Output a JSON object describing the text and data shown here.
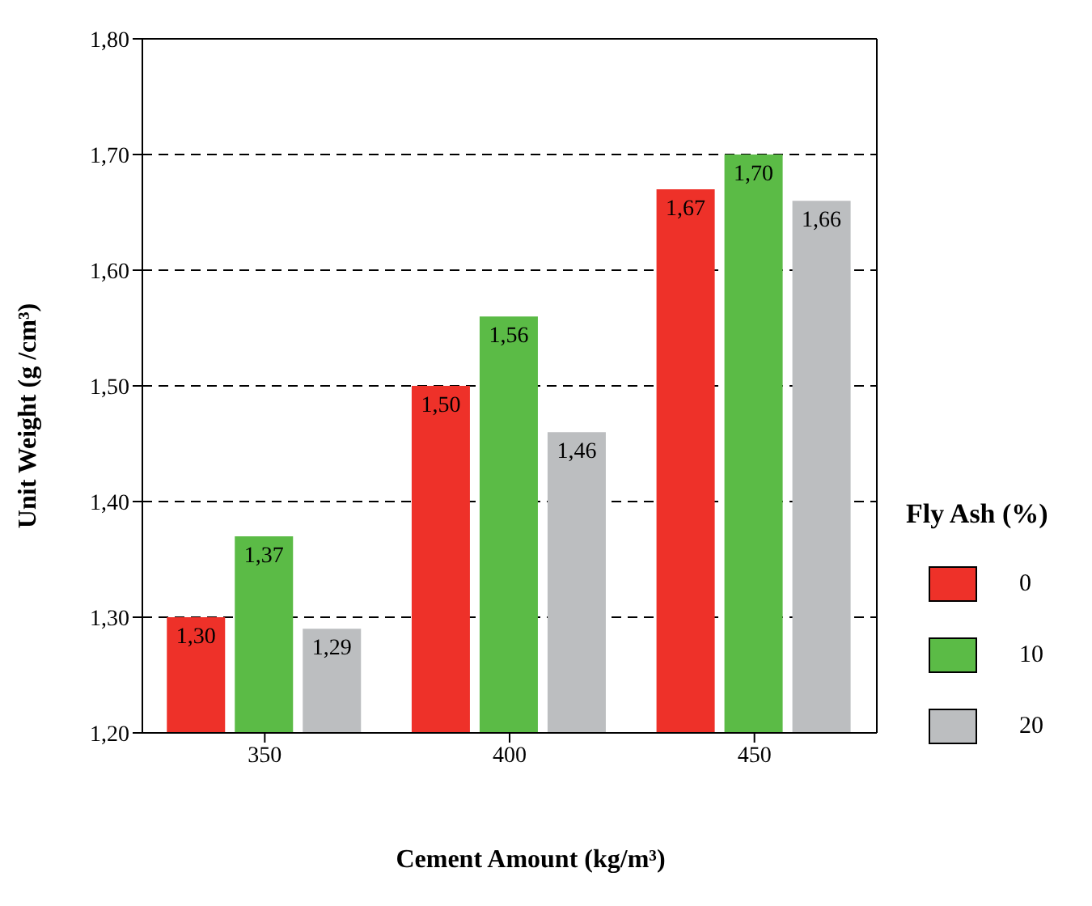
{
  "chart_data": {
    "type": "bar",
    "xlabel": "Cement Amount (kg/m³)",
    "ylabel": "Unit Weight (g /cm³)",
    "legend_title": "Fly Ash (%)",
    "categories": [
      "350",
      "400",
      "450"
    ],
    "series": [
      {
        "name": "0",
        "color": "#ee3129",
        "values": [
          1.3,
          1.5,
          1.67
        ],
        "value_labels": [
          "1,30",
          "1,50",
          "1,67"
        ]
      },
      {
        "name": "10",
        "color": "#5bbb46",
        "values": [
          1.37,
          1.56,
          1.7
        ],
        "value_labels": [
          "1,37",
          "1,56",
          "1,70"
        ]
      },
      {
        "name": "20",
        "color": "#bcbec0",
        "values": [
          1.29,
          1.46,
          1.66
        ],
        "value_labels": [
          "1,29",
          "1,46",
          "1,66"
        ]
      }
    ],
    "ylim": [
      1.2,
      1.8
    ],
    "yticks": [
      {
        "value": 1.2,
        "label": "1,20"
      },
      {
        "value": 1.3,
        "label": "1,30"
      },
      {
        "value": 1.4,
        "label": "1,40"
      },
      {
        "value": 1.5,
        "label": "1,50"
      },
      {
        "value": 1.6,
        "label": "1,60"
      },
      {
        "value": 1.7,
        "label": "1,70"
      },
      {
        "value": 1.8,
        "label": "1,80"
      }
    ],
    "grid": "y",
    "legend": "right"
  }
}
